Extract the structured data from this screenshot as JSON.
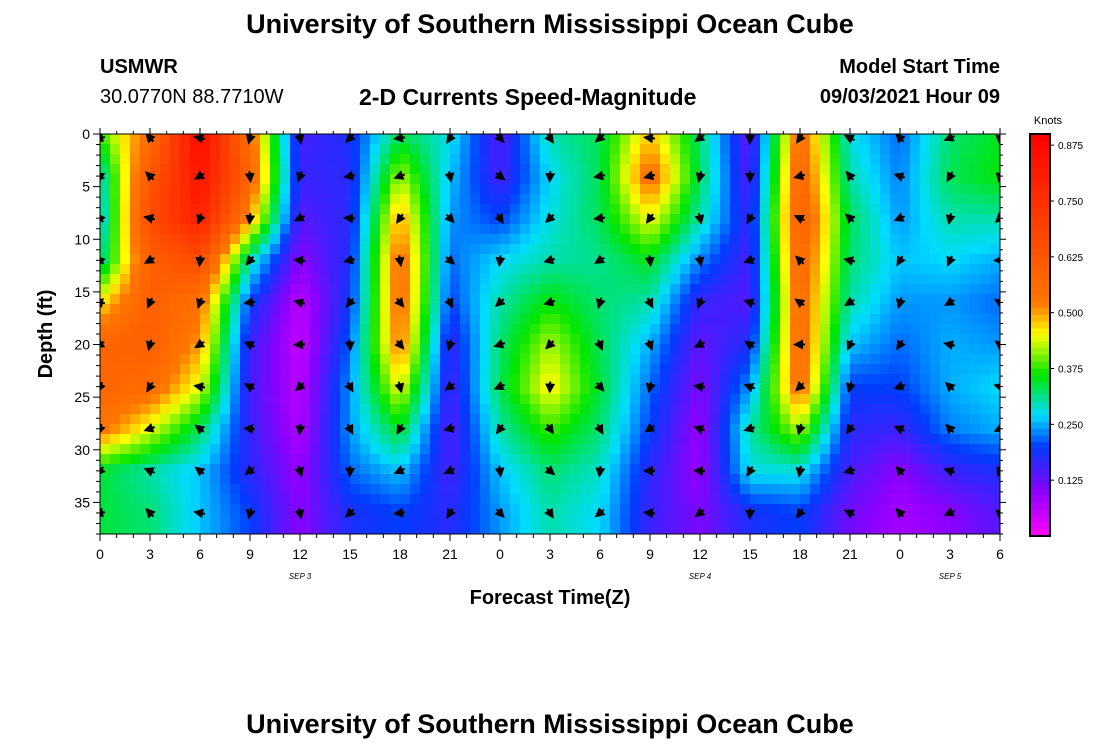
{
  "header": {
    "title": "University of Southern Mississippi Ocean Cube",
    "station": "USMWR",
    "coords": "30.0770N  88.7710W",
    "subtitle": "2-D Currents Speed-Magnitude",
    "model_label": "Model Start Time",
    "model_time": "09/03/2021 Hour 09"
  },
  "footer": {
    "title": "University of Southern Mississippi Ocean Cube"
  },
  "chart_data": {
    "type": "heatmap",
    "title": "2-D Currents Speed-Magnitude",
    "xlabel": "Forecast Time(Z)",
    "ylabel": "Depth (ft)",
    "x_ticks": [
      "0",
      "3",
      "6",
      "9",
      "12",
      "15",
      "18",
      "21",
      "0",
      "3",
      "6",
      "9",
      "12",
      "15",
      "18",
      "21",
      "0",
      "3",
      "6"
    ],
    "x_range_hours": [
      0,
      54
    ],
    "date_labels": [
      {
        "text": "SEP 3",
        "hour": 12
      },
      {
        "text": "SEP 4",
        "hour": 36
      },
      {
        "text": "SEP 5",
        "hour": 51
      }
    ],
    "y_ticks": [
      0,
      5,
      10,
      15,
      20,
      25,
      30,
      35
    ],
    "y_range": [
      0,
      38
    ],
    "y_reversed": true,
    "colorbar": {
      "label": "Knots",
      "ticks": [
        "0.875",
        "0.750",
        "0.625",
        "0.500",
        "0.375",
        "0.250",
        "0.125"
      ],
      "range": [
        0.0,
        0.9
      ]
    },
    "depths_ft": [
      0,
      4,
      8,
      12,
      16,
      20,
      24,
      28,
      32,
      36
    ],
    "hours": [
      0,
      3,
      6,
      9,
      12,
      15,
      18,
      21,
      24,
      27,
      30,
      33,
      36,
      39,
      42,
      45,
      48,
      51,
      54
    ],
    "speed_knots": [
      [
        0.38,
        0.55,
        0.87,
        0.55,
        0.15,
        0.18,
        0.33,
        0.28,
        0.14,
        0.3,
        0.33,
        0.48,
        0.32,
        0.13,
        0.55,
        0.28,
        0.22,
        0.32,
        0.35
      ],
      [
        0.28,
        0.62,
        0.84,
        0.58,
        0.16,
        0.17,
        0.42,
        0.26,
        0.15,
        0.27,
        0.33,
        0.55,
        0.33,
        0.14,
        0.58,
        0.3,
        0.23,
        0.33,
        0.36
      ],
      [
        0.26,
        0.66,
        0.8,
        0.5,
        0.14,
        0.17,
        0.5,
        0.24,
        0.2,
        0.28,
        0.33,
        0.45,
        0.3,
        0.16,
        0.6,
        0.33,
        0.24,
        0.3,
        0.3
      ],
      [
        0.3,
        0.6,
        0.66,
        0.3,
        0.1,
        0.18,
        0.55,
        0.22,
        0.27,
        0.3,
        0.31,
        0.35,
        0.23,
        0.15,
        0.58,
        0.32,
        0.26,
        0.27,
        0.25
      ],
      [
        0.46,
        0.6,
        0.54,
        0.2,
        0.06,
        0.19,
        0.55,
        0.2,
        0.3,
        0.36,
        0.32,
        0.3,
        0.16,
        0.14,
        0.56,
        0.3,
        0.24,
        0.24,
        0.22
      ],
      [
        0.58,
        0.6,
        0.5,
        0.16,
        0.05,
        0.22,
        0.53,
        0.16,
        0.32,
        0.42,
        0.33,
        0.25,
        0.13,
        0.18,
        0.56,
        0.26,
        0.22,
        0.25,
        0.24
      ],
      [
        0.58,
        0.56,
        0.44,
        0.15,
        0.06,
        0.24,
        0.45,
        0.15,
        0.33,
        0.46,
        0.34,
        0.22,
        0.11,
        0.24,
        0.55,
        0.2,
        0.2,
        0.25,
        0.27
      ],
      [
        0.54,
        0.44,
        0.33,
        0.16,
        0.07,
        0.24,
        0.35,
        0.14,
        0.3,
        0.38,
        0.32,
        0.2,
        0.09,
        0.3,
        0.42,
        0.17,
        0.16,
        0.23,
        0.25
      ],
      [
        0.34,
        0.3,
        0.26,
        0.17,
        0.09,
        0.22,
        0.26,
        0.15,
        0.26,
        0.32,
        0.29,
        0.17,
        0.09,
        0.28,
        0.28,
        0.15,
        0.1,
        0.16,
        0.18
      ],
      [
        0.34,
        0.32,
        0.26,
        0.2,
        0.1,
        0.18,
        0.2,
        0.17,
        0.24,
        0.3,
        0.27,
        0.16,
        0.11,
        0.18,
        0.2,
        0.12,
        0.08,
        0.1,
        0.14
      ]
    ],
    "grid": false,
    "legend": "right"
  }
}
